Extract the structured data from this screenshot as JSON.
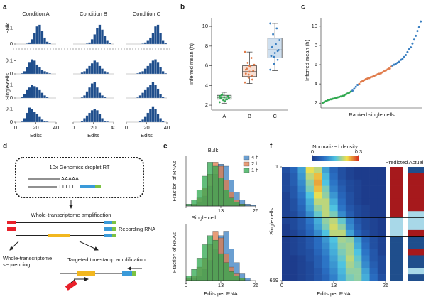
{
  "chart_data": [
    {
      "type": "histogram-grid",
      "label": "a",
      "column_titles": [
        "Condition A",
        "Condition B",
        "Condition C"
      ],
      "row_labels": [
        "Bulk",
        "Single cells"
      ],
      "bins": [
        0,
        2.5,
        5,
        7.5,
        10,
        12.5,
        15,
        17.5,
        20,
        22.5,
        25,
        27.5,
        30,
        32.5,
        35,
        37.5,
        40
      ],
      "xlim": [
        0,
        40
      ],
      "xticks": [
        0,
        20,
        40
      ],
      "ylim": [
        0,
        0.15
      ],
      "yticks": [
        0,
        0.1
      ],
      "xlabel": "Edits",
      "color": "#1f4e8c",
      "rows": [
        [
          [
            0,
            0,
            0,
            0,
            0.003,
            0.01,
            0.03,
            0.07,
            0.11,
            0.12,
            0.08,
            0.04,
            0.015,
            0.005,
            0,
            0
          ],
          [
            0,
            0,
            0,
            0,
            0,
            0.003,
            0.01,
            0.03,
            0.06,
            0.1,
            0.12,
            0.09,
            0.05,
            0.02,
            0.005,
            0
          ],
          [
            0,
            0,
            0,
            0,
            0,
            0,
            0.003,
            0.01,
            0.02,
            0.04,
            0.07,
            0.11,
            0.12,
            0.07,
            0.02,
            0.005
          ]
        ],
        [
          [
            0,
            0,
            0.005,
            0.02,
            0.05,
            0.09,
            0.11,
            0.1,
            0.07,
            0.05,
            0.03,
            0.02,
            0.01,
            0.005,
            0,
            0
          ],
          [
            0,
            0,
            0,
            0.01,
            0.02,
            0.04,
            0.06,
            0.08,
            0.1,
            0.09,
            0.06,
            0.04,
            0.02,
            0.01,
            0,
            0
          ],
          [
            0,
            0,
            0,
            0,
            0.005,
            0.01,
            0.02,
            0.04,
            0.06,
            0.08,
            0.1,
            0.11,
            0.09,
            0.05,
            0.02,
            0.005
          ]
        ],
        [
          [
            0,
            0,
            0.01,
            0.03,
            0.06,
            0.08,
            0.1,
            0.09,
            0.08,
            0.06,
            0.04,
            0.02,
            0.01,
            0,
            0,
            0
          ],
          [
            0,
            0,
            0,
            0.005,
            0.02,
            0.05,
            0.08,
            0.11,
            0.12,
            0.08,
            0.04,
            0.02,
            0.01,
            0,
            0,
            0
          ],
          [
            0,
            0,
            0,
            0,
            0.005,
            0.02,
            0.04,
            0.06,
            0.08,
            0.1,
            0.12,
            0.1,
            0.07,
            0.03,
            0.01,
            0
          ]
        ],
        [
          [
            0,
            0,
            0.005,
            0.03,
            0.07,
            0.11,
            0.1,
            0.08,
            0.06,
            0.04,
            0.02,
            0.01,
            0.005,
            0,
            0,
            0
          ],
          [
            0,
            0,
            0,
            0.01,
            0.03,
            0.05,
            0.07,
            0.09,
            0.1,
            0.09,
            0.06,
            0.03,
            0.01,
            0.005,
            0,
            0
          ],
          [
            0,
            0,
            0,
            0,
            0,
            0.01,
            0.02,
            0.04,
            0.07,
            0.1,
            0.12,
            0.1,
            0.06,
            0.03,
            0.01,
            0
          ]
        ]
      ]
    },
    {
      "type": "box",
      "label": "b",
      "ylabel": "Inferred mean (h)",
      "categories": [
        "A",
        "B",
        "C"
      ],
      "colors": [
        "#2fa84f",
        "#e07b4a",
        "#3a7fc1"
      ],
      "boxes": [
        {
          "min": 2.2,
          "q1": 2.6,
          "median": 2.8,
          "q3": 3.0,
          "max": 3.3
        },
        {
          "min": 4.2,
          "q1": 4.9,
          "median": 5.4,
          "q3": 6.0,
          "max": 7.4
        },
        {
          "min": 5.5,
          "q1": 6.8,
          "median": 7.6,
          "q3": 8.8,
          "max": 10.3
        }
      ],
      "points": [
        [
          2.3,
          2.5,
          2.6,
          2.7,
          2.8,
          2.9,
          3.0,
          2.4,
          2.7,
          3.1,
          2.6,
          2.9
        ],
        [
          4.3,
          4.8,
          5.0,
          5.2,
          5.4,
          5.5,
          5.7,
          5.9,
          6.1,
          6.3,
          6.8,
          7.4,
          5.1,
          4.6,
          5.6,
          6.0
        ],
        [
          5.6,
          6.2,
          6.6,
          7.0,
          7.3,
          7.6,
          7.9,
          8.2,
          8.6,
          9.2,
          9.8,
          10.3,
          6.9,
          7.5
        ]
      ],
      "ylim": [
        1.5,
        10.8
      ],
      "yticks": [
        2,
        4,
        6,
        8,
        10
      ]
    },
    {
      "type": "scatter",
      "label": "c",
      "ylabel": "Inferred mean (h)",
      "xlabel": "Ranked single cells",
      "xlim": [
        0,
        61
      ],
      "ylim": [
        1.5,
        10.8
      ],
      "yticks": [
        2,
        4,
        6,
        8,
        10
      ],
      "series": [
        {
          "color": "#2fa84f",
          "x": [
            1,
            2,
            3,
            4,
            5,
            6,
            7,
            8,
            9,
            10,
            11,
            12,
            13,
            14,
            15,
            16,
            17,
            18
          ],
          "values": [
            2.0,
            2.1,
            2.2,
            2.3,
            2.35,
            2.4,
            2.45,
            2.5,
            2.55,
            2.6,
            2.65,
            2.7,
            2.75,
            2.8,
            2.9,
            3.0,
            3.1,
            3.2
          ]
        },
        {
          "color": "#e07b4a",
          "x": [
            23,
            24,
            25,
            26,
            27,
            28,
            29,
            30,
            31,
            32,
            33,
            34,
            35,
            36,
            37,
            38,
            39,
            40,
            41,
            42
          ],
          "values": [
            4.0,
            4.2,
            4.3,
            4.4,
            4.5,
            4.55,
            4.6,
            4.7,
            4.75,
            4.8,
            4.9,
            5.0,
            5.05,
            5.1,
            5.2,
            5.3,
            5.4,
            5.5,
            5.6,
            5.8
          ]
        },
        {
          "color": "#3a7fc1",
          "x": [
            19,
            20,
            21,
            22,
            43,
            44,
            45,
            46,
            47,
            48,
            49,
            50,
            51,
            52,
            53,
            54,
            55,
            56,
            57,
            58,
            59,
            60
          ],
          "values": [
            3.3,
            3.5,
            3.7,
            3.9,
            5.9,
            6.0,
            6.1,
            6.2,
            6.3,
            6.5,
            6.6,
            6.8,
            7.0,
            7.3,
            7.6,
            7.8,
            8.2,
            8.6,
            9.0,
            9.5,
            9.9,
            10.5
          ]
        }
      ]
    },
    {
      "type": "overlay-histogram",
      "label": "e",
      "ylabel": "Fraction of RNAs",
      "xlabel": "Edits per RNA",
      "panel_titles": [
        "Bulk",
        "Single cell"
      ],
      "bins": [
        0,
        2,
        4,
        6,
        8,
        10,
        12,
        14,
        16,
        18,
        20,
        22,
        24,
        26
      ],
      "xlim": [
        0,
        26
      ],
      "xticks": [
        0,
        13,
        26
      ],
      "ylim": [
        0,
        0.25
      ],
      "series": [
        {
          "name": "4 h",
          "color": "#3a7fc1",
          "values": [
            [
              0,
              0.005,
              0.02,
              0.05,
              0.1,
              0.16,
              0.21,
              0.2,
              0.13,
              0.07,
              0.03,
              0.01,
              0.005
            ],
            [
              0,
              0.01,
              0.02,
              0.05,
              0.09,
              0.14,
              0.2,
              0.22,
              0.14,
              0.08,
              0.03,
              0.01,
              0
            ]
          ]
        },
        {
          "name": "2 h",
          "color": "#e07b4a",
          "values": [
            [
              0,
              0.01,
              0.04,
              0.09,
              0.16,
              0.22,
              0.2,
              0.13,
              0.07,
              0.03,
              0.01,
              0,
              0
            ],
            [
              0.01,
              0.02,
              0.06,
              0.1,
              0.16,
              0.22,
              0.19,
              0.12,
              0.06,
              0.03,
              0.01,
              0,
              0
            ]
          ]
        },
        {
          "name": "1 h",
          "color": "#2fa84f",
          "values": [
            [
              0.01,
              0.03,
              0.08,
              0.15,
              0.22,
              0.2,
              0.14,
              0.08,
              0.04,
              0.02,
              0.01,
              0,
              0
            ],
            [
              0.02,
              0.05,
              0.1,
              0.16,
              0.2,
              0.18,
              0.12,
              0.08,
              0.04,
              0.02,
              0.01,
              0,
              0
            ]
          ]
        }
      ]
    },
    {
      "type": "heatmap",
      "label": "f",
      "colorbar_title": "Normalized density",
      "clim": [
        0,
        0.3
      ],
      "cticks": [
        0,
        0.3
      ],
      "ylabel": "Single cells",
      "xlabel": "Edits per RNA",
      "ylim": [
        1,
        659
      ],
      "yticks": [
        1,
        659
      ],
      "xlim": [
        0,
        26
      ],
      "xticks": [
        0,
        13,
        26
      ],
      "bins": [
        0,
        2,
        4,
        6,
        8,
        10,
        12,
        14,
        16,
        18,
        20,
        22,
        24,
        26
      ],
      "strip_titles": [
        "Predicted",
        "Actual"
      ],
      "predicted_colors": [
        "#a6191c",
        "#a6191c",
        "#a6191c",
        "#a6191c",
        "#a6191c",
        "#a6191c",
        "#a6191c",
        "#a6191c",
        "#a8d8e8",
        "#a8d8e8",
        "#a8d8e8",
        "#1f4e8c",
        "#1f4e8c",
        "#1f4e8c",
        "#1f4e8c",
        "#1f4e8c",
        "#1f4e8c",
        "#1f4e8c"
      ],
      "actual_colors": [
        "#1f4e8c",
        "#a6191c",
        "#a6191c",
        "#a6191c",
        "#a6191c",
        "#a6191c",
        "#a6191c",
        "#a8d8e8",
        "#a8d8e8",
        "#a8d8e8",
        "#a6191c",
        "#1f4e8c",
        "#1f4e8c",
        "#a6191c",
        "#1f4e8c",
        "#1f4e8c",
        "#a8d8e8",
        "#1f4e8c"
      ],
      "values": [
        [
          0.03,
          0.06,
          0.12,
          0.22,
          0.2,
          0.12,
          0.06,
          0.03,
          0.01,
          0,
          0,
          0,
          0
        ],
        [
          0.02,
          0.05,
          0.11,
          0.2,
          0.24,
          0.14,
          0.07,
          0.03,
          0.01,
          0,
          0,
          0,
          0
        ],
        [
          0.02,
          0.05,
          0.1,
          0.18,
          0.25,
          0.15,
          0.08,
          0.04,
          0.02,
          0.01,
          0,
          0,
          0
        ],
        [
          0.02,
          0.04,
          0.09,
          0.17,
          0.24,
          0.17,
          0.09,
          0.05,
          0.02,
          0.01,
          0,
          0,
          0
        ],
        [
          0.01,
          0.04,
          0.08,
          0.15,
          0.22,
          0.18,
          0.11,
          0.06,
          0.03,
          0.01,
          0,
          0,
          0
        ],
        [
          0.01,
          0.03,
          0.07,
          0.13,
          0.2,
          0.2,
          0.13,
          0.07,
          0.03,
          0.01,
          0,
          0,
          0
        ],
        [
          0.01,
          0.03,
          0.06,
          0.12,
          0.18,
          0.2,
          0.15,
          0.08,
          0.04,
          0.02,
          0.01,
          0,
          0
        ],
        [
          0.01,
          0.02,
          0.05,
          0.1,
          0.16,
          0.2,
          0.17,
          0.1,
          0.05,
          0.02,
          0.01,
          0,
          0
        ],
        [
          0.01,
          0.02,
          0.04,
          0.08,
          0.13,
          0.18,
          0.2,
          0.16,
          0.09,
          0.04,
          0.02,
          0.01,
          0
        ],
        [
          0,
          0.02,
          0.04,
          0.07,
          0.12,
          0.17,
          0.21,
          0.18,
          0.1,
          0.05,
          0.02,
          0.01,
          0
        ],
        [
          0,
          0.01,
          0.03,
          0.06,
          0.1,
          0.15,
          0.2,
          0.2,
          0.12,
          0.06,
          0.03,
          0.01,
          0
        ],
        [
          0,
          0.01,
          0.02,
          0.04,
          0.07,
          0.11,
          0.15,
          0.19,
          0.18,
          0.12,
          0.06,
          0.03,
          0.01
        ],
        [
          0,
          0.01,
          0.02,
          0.04,
          0.07,
          0.1,
          0.14,
          0.18,
          0.19,
          0.13,
          0.07,
          0.03,
          0.01
        ],
        [
          0,
          0.01,
          0.02,
          0.03,
          0.06,
          0.09,
          0.13,
          0.17,
          0.19,
          0.15,
          0.08,
          0.04,
          0.01
        ],
        [
          0,
          0,
          0.01,
          0.03,
          0.05,
          0.08,
          0.12,
          0.16,
          0.2,
          0.16,
          0.09,
          0.04,
          0.02
        ],
        [
          0,
          0,
          0.01,
          0.02,
          0.05,
          0.08,
          0.11,
          0.15,
          0.19,
          0.17,
          0.1,
          0.05,
          0.02
        ],
        [
          0,
          0,
          0.01,
          0.02,
          0.04,
          0.07,
          0.1,
          0.14,
          0.18,
          0.18,
          0.12,
          0.06,
          0.02
        ],
        [
          0,
          0,
          0.01,
          0.02,
          0.04,
          0.06,
          0.09,
          0.13,
          0.17,
          0.18,
          0.13,
          0.07,
          0.03
        ]
      ]
    }
  ],
  "diagram": {
    "label": "d",
    "droplet_title": "10x Genomics droplet RT",
    "poly_a": "AAAAA",
    "poly_t": "TTTTT",
    "amplification": "Whole-transcriptome amplification",
    "recording_rna": "Recording RNA",
    "sequencing": [
      "Whole-transcriptome",
      "sequencing"
    ],
    "targeted": "Targeted timestamp amplification"
  }
}
